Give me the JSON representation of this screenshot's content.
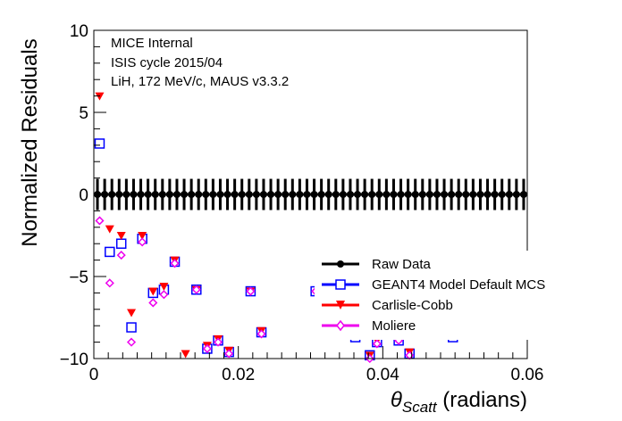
{
  "chart_data": {
    "type": "scatter",
    "xlabel": {
      "symbol": "θ",
      "subscript": "Scatt",
      "unit": " (radians)"
    },
    "ylabel": "Normalized Residuals",
    "xlim": [
      0,
      0.06
    ],
    "ylim": [
      -10,
      10
    ],
    "x_ticks": [
      {
        "value": 0,
        "label": "0"
      },
      {
        "value": 0.02,
        "label": "0.02"
      },
      {
        "value": 0.04,
        "label": "0.04"
      },
      {
        "value": 0.06,
        "label": "0.06"
      }
    ],
    "y_ticks": [
      {
        "value": -10,
        "label": "−10"
      },
      {
        "value": -5,
        "label": "−5"
      },
      {
        "value": 0,
        "label": "0"
      },
      {
        "value": 5,
        "label": "5"
      },
      {
        "value": 10,
        "label": "10"
      }
    ],
    "annotations": [
      "MICE Internal",
      "ISIS cycle 2015/04",
      "LiH, 172 MeV/c, MAUS v3.3.2"
    ],
    "legend_position": "bottom-right",
    "series": [
      {
        "name": "Raw Data",
        "color": "#000000",
        "marker": "filled-circle",
        "error": 0.95,
        "x": [
          0.0005,
          0.0015,
          0.0025,
          0.0035,
          0.0045,
          0.0055,
          0.0065,
          0.0075,
          0.0085,
          0.0095,
          0.0105,
          0.0115,
          0.0125,
          0.0135,
          0.0145,
          0.0155,
          0.0165,
          0.0175,
          0.0185,
          0.0195,
          0.0205,
          0.0215,
          0.0225,
          0.0235,
          0.0245,
          0.0255,
          0.0265,
          0.0275,
          0.0285,
          0.0295,
          0.0305,
          0.0315,
          0.0325,
          0.0335,
          0.0345,
          0.0355,
          0.0365,
          0.0375,
          0.0385,
          0.0395,
          0.0405,
          0.0415,
          0.0425,
          0.0435,
          0.0445,
          0.0455,
          0.0465,
          0.0475,
          0.0485,
          0.0495,
          0.0505,
          0.0515,
          0.0525,
          0.0535,
          0.0545,
          0.0555,
          0.0565,
          0.0575,
          0.0585,
          0.0595
        ],
        "y": [
          0,
          0,
          0,
          0,
          0,
          0,
          0,
          0,
          0,
          0,
          0,
          0,
          0,
          0,
          0,
          0,
          0,
          0,
          0,
          0,
          0,
          0,
          0,
          0,
          0,
          0,
          0,
          0,
          0,
          0,
          0,
          0,
          0,
          0,
          0,
          0,
          0,
          0,
          0,
          0,
          0,
          0,
          0,
          0,
          0,
          0,
          0,
          0,
          0,
          0,
          0,
          0,
          0,
          0,
          0,
          0,
          0,
          0,
          0,
          0
        ]
      },
      {
        "name": "GEANT4 Model Default MCS",
        "color": "#0000ff",
        "marker": "open-square",
        "x": [
          0.0008,
          0.0022,
          0.0038,
          0.0052,
          0.0067,
          0.0082,
          0.0097,
          0.0112,
          0.0142,
          0.0157,
          0.0172,
          0.0187,
          0.0217,
          0.0232,
          0.0307,
          0.0362,
          0.0382,
          0.0392,
          0.0422,
          0.0437,
          0.0497
        ],
        "y": [
          3.1,
          -3.5,
          -3.0,
          -8.1,
          -2.7,
          -6.0,
          -5.8,
          -4.1,
          -5.8,
          -9.4,
          -8.9,
          -9.6,
          -5.9,
          -8.4,
          -5.9,
          -8.7,
          -9.8,
          -9.0,
          -8.9,
          -9.7,
          -8.7
        ]
      },
      {
        "name": "Carlisle-Cobb",
        "color": "#ff0000",
        "marker": "filled-triangle-down",
        "x": [
          0.0008,
          0.0022,
          0.0038,
          0.0052,
          0.0067,
          0.0082,
          0.0097,
          0.0112,
          0.0127,
          0.0142,
          0.0157,
          0.0172,
          0.0187,
          0.0217,
          0.0232,
          0.0382,
          0.0392,
          0.0422,
          0.0437
        ],
        "y": [
          6.0,
          -2.1,
          -2.5,
          -7.2,
          -2.5,
          -5.9,
          -5.6,
          -4.0,
          -9.7,
          -5.8,
          -9.2,
          -8.8,
          -9.5,
          -5.9,
          -8.3,
          -9.8,
          -8.9,
          -8.9,
          -9.6
        ]
      },
      {
        "name": "Moliere",
        "color": "#ee00ee",
        "marker": "open-diamond",
        "x": [
          0.0008,
          0.0022,
          0.0038,
          0.0052,
          0.0067,
          0.0082,
          0.0097,
          0.0112,
          0.0142,
          0.0157,
          0.0172,
          0.0187,
          0.0217,
          0.0232,
          0.0307,
          0.0382,
          0.0392,
          0.0422,
          0.0437
        ],
        "y": [
          -1.6,
          -5.4,
          -3.7,
          -9.0,
          -2.9,
          -6.6,
          -6.1,
          -4.2,
          -5.8,
          -9.4,
          -9.0,
          -9.7,
          -5.9,
          -8.5,
          -5.9,
          -10.0,
          -9.1,
          -8.9,
          -9.8
        ]
      }
    ]
  }
}
